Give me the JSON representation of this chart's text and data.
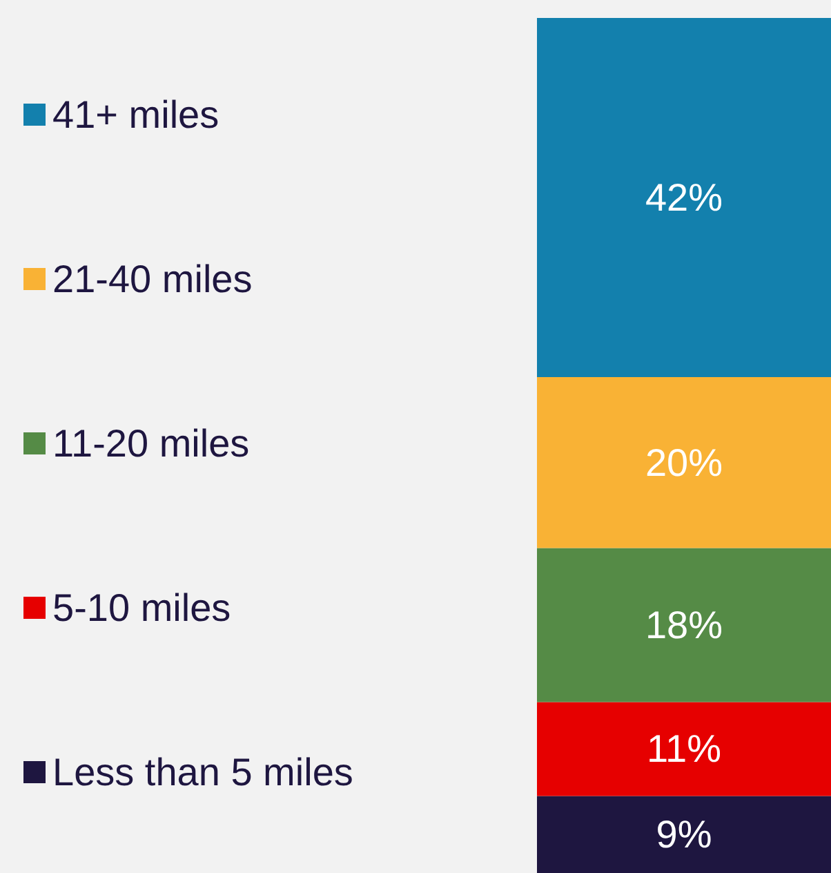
{
  "chart_data": {
    "type": "bar",
    "stacked": true,
    "categories": [
      null
    ],
    "ylim": [
      0,
      100
    ],
    "grid": false,
    "legend": "left",
    "series": [
      {
        "name": "Less than 5 miles",
        "color": "#1e1640",
        "values": [
          9
        ],
        "value_labels": [
          "9%"
        ]
      },
      {
        "name": "5-10 miles",
        "color": "#e60000",
        "values": [
          11
        ],
        "value_labels": [
          "11%"
        ]
      },
      {
        "name": "11-20 miles",
        "color": "#558b46",
        "values": [
          18
        ],
        "value_labels": [
          "18%"
        ]
      },
      {
        "name": "21-40 miles",
        "color": "#f9b235",
        "values": [
          20
        ],
        "value_labels": [
          "20%"
        ]
      },
      {
        "name": "41+ miles",
        "color": "#1380ad",
        "values": [
          42
        ],
        "value_labels": [
          "42%"
        ]
      }
    ]
  }
}
